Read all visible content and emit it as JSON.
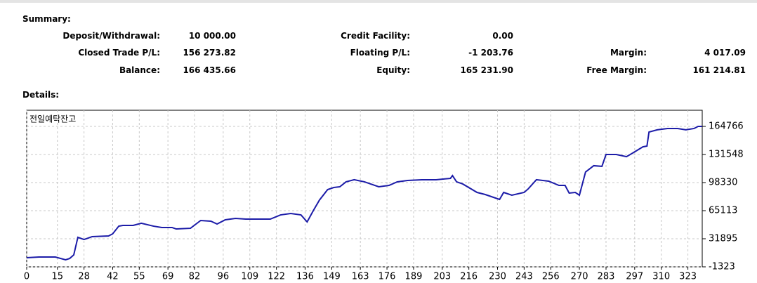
{
  "summary": {
    "title": "Summary:",
    "rows": [
      [
        {
          "label": "Deposit/Withdrawal:",
          "value": "10 000.00"
        },
        {
          "label": "Credit Facility:",
          "value": "0.00"
        }
      ],
      [
        {
          "label": "Closed Trade P/L:",
          "value": "156 273.82"
        },
        {
          "label": "Floating P/L:",
          "value": "-1 203.76"
        },
        {
          "label": "Margin:",
          "value": "4 017.09"
        }
      ],
      [
        {
          "label": "Balance:",
          "value": "166 435.66"
        },
        {
          "label": "Equity:",
          "value": "165 231.90"
        },
        {
          "label": "Free Margin:",
          "value": "161 214.81"
        }
      ]
    ]
  },
  "details": {
    "title": "Details:"
  },
  "chart_data": {
    "type": "line",
    "title": "전일예탁잔고",
    "color": "#1c1ca8",
    "grid": true,
    "x": [
      0,
      6,
      14,
      19,
      21,
      23,
      25,
      28,
      32,
      40,
      42,
      45,
      47,
      52,
      56,
      62,
      66,
      71,
      73,
      80,
      85,
      90,
      93,
      97,
      102,
      107,
      112,
      119,
      124,
      129,
      134,
      137,
      140,
      143,
      147,
      150,
      153,
      156,
      160,
      165,
      172,
      177,
      181,
      186,
      193,
      200,
      207,
      208,
      210,
      213,
      220,
      224,
      231,
      233,
      237,
      243,
      245,
      249,
      255,
      260,
      263,
      265,
      268,
      270,
      273,
      277,
      281,
      283,
      288,
      293,
      296,
      301,
      303,
      304,
      308,
      313,
      318,
      322,
      326,
      328,
      330
    ],
    "values": [
      9500,
      10300,
      10300,
      7000,
      8600,
      12800,
      33600,
      31000,
      34400,
      35200,
      37700,
      46800,
      47700,
      47700,
      50200,
      46800,
      45200,
      45200,
      43500,
      44300,
      53500,
      52700,
      49300,
      54300,
      56000,
      55100,
      55100,
      55100,
      60100,
      61800,
      60100,
      51800,
      65100,
      77600,
      90000,
      92500,
      93400,
      99200,
      101700,
      99200,
      93400,
      95000,
      99200,
      100800,
      101700,
      101700,
      103300,
      106600,
      99200,
      96700,
      86700,
      84200,
      78400,
      86700,
      83400,
      86700,
      90900,
      101700,
      100000,
      95000,
      95000,
      85900,
      86700,
      83400,
      110800,
      118300,
      117500,
      131500,
      131500,
      129000,
      133200,
      140600,
      141500,
      158100,
      160700,
      162300,
      162300,
      160700,
      162300,
      164800,
      164766
    ],
    "xlim": [
      0,
      330
    ],
    "xticks": [
      0,
      15,
      28,
      42,
      55,
      69,
      82,
      96,
      109,
      122,
      136,
      149,
      163,
      176,
      189,
      203,
      216,
      230,
      243,
      256,
      270,
      283,
      297,
      310,
      323
    ],
    "ylim": [
      -1323,
      183866
    ],
    "yticks": [
      -1323,
      31895,
      65113,
      98330,
      131548,
      164766
    ]
  }
}
